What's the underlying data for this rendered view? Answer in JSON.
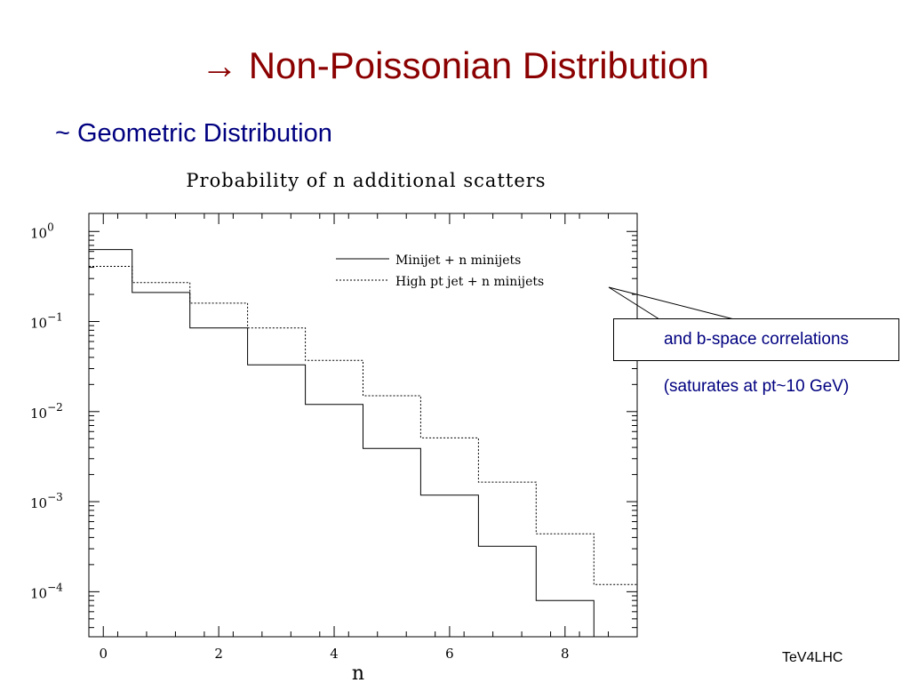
{
  "slide": {
    "title": "→ Non-Poissonian Distribution",
    "bullet": "~ Geometric Distribution",
    "callout_box": "and b-space correlations",
    "callout_note": "(saturates at pt~10 GeV)",
    "footer": "TeV4LHC"
  },
  "chart_data": {
    "type": "line",
    "title": "Probability of n additional scatters",
    "xlabel": "n",
    "ylabel": "",
    "xlim": [
      -0.25,
      9.25
    ],
    "ylim": [
      -4.5,
      0.2
    ],
    "y_scale": "log",
    "x_ticks": [
      0,
      2,
      4,
      6,
      8
    ],
    "y_ticks": [
      {
        "exp": 0,
        "base": "10",
        "sup": "0"
      },
      {
        "exp": -1,
        "base": "10",
        "sup": "−1"
      },
      {
        "exp": -2,
        "base": "10",
        "sup": "−2"
      },
      {
        "exp": -3,
        "base": "10",
        "sup": "−3"
      },
      {
        "exp": -4,
        "base": "10",
        "sup": "−4"
      }
    ],
    "legend_position": "top-right",
    "series": [
      {
        "name": "Minijet + n minijets",
        "style": "solid",
        "x": [
          0,
          1,
          2,
          3,
          4,
          5,
          6,
          7,
          8
        ],
        "values": [
          0.63,
          0.21,
          0.085,
          0.033,
          0.012,
          0.0039,
          0.00118,
          0.00032,
          8e-05
        ]
      },
      {
        "name": "High pt jet + n minijets",
        "style": "dotted",
        "x": [
          0,
          1,
          2,
          3,
          4,
          5,
          6,
          7,
          8,
          9
        ],
        "values": [
          0.41,
          0.27,
          0.16,
          0.085,
          0.037,
          0.015,
          0.0051,
          0.00165,
          0.00044,
          0.00012
        ]
      }
    ]
  },
  "colors": {
    "title": "#8b0000",
    "text": "#000080",
    "plot": "#000000"
  }
}
